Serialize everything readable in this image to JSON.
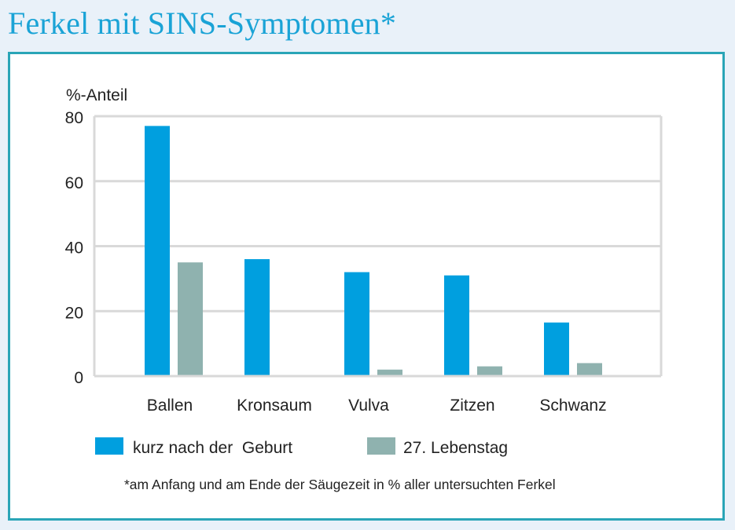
{
  "title": "Ferkel mit SINS-Symptomen*",
  "footnote": "*am Anfang und am Ende der Säugezeit in % aller untersuchten Ferkel",
  "colors": {
    "title": "#1aa3d6",
    "frame": "#2aa5b7",
    "series1": "#009fdf",
    "series2": "#8fb2af",
    "grid": "#d9d9d9"
  },
  "chart_data": {
    "type": "bar",
    "ylabel": "%-Anteil",
    "ylim": [
      0,
      80
    ],
    "yticks": [
      "0",
      "20",
      "40",
      "60",
      "80"
    ],
    "grid": true,
    "legend": "bottom",
    "categories": [
      "Ballen",
      "Kronsaum",
      "Vulva",
      "Zitzen",
      "Schwanz"
    ],
    "series": [
      {
        "name": "kurz nach der  Geburt",
        "color": "#009fdf",
        "values": [
          77,
          36,
          32,
          31,
          16.5
        ]
      },
      {
        "name": "27. Lebenstag",
        "color": "#8fb2af",
        "values": [
          35,
          0,
          2,
          3,
          4
        ]
      }
    ]
  }
}
